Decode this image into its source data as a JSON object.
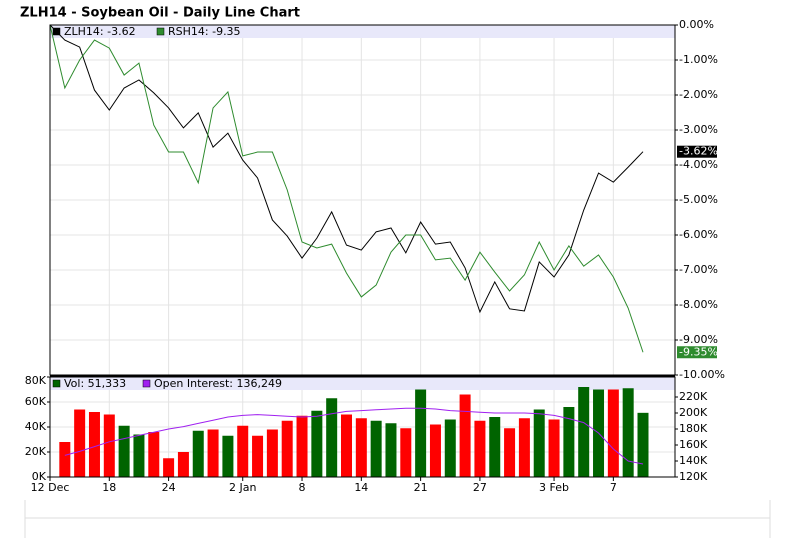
{
  "chart_data": [
    {
      "type": "line",
      "title": "ZLH14 - Soybean Oil - Daily Line Chart",
      "ylim": [
        -10,
        0
      ],
      "yticks": [
        {
          "value": 0,
          "label": "0.00%"
        },
        {
          "value": -1,
          "label": "-1.00%"
        },
        {
          "value": -2,
          "label": "-2.00%"
        },
        {
          "value": -3,
          "label": "-3.00%"
        },
        {
          "value": -4,
          "label": "-4.00%"
        },
        {
          "value": -5,
          "label": "-5.00%"
        },
        {
          "value": -6,
          "label": "-6.00%"
        },
        {
          "value": -7,
          "label": "-7.00%"
        },
        {
          "value": -8,
          "label": "-8.00%"
        },
        {
          "value": -9,
          "label": "-9.00%"
        },
        {
          "value": -10,
          "label": "-10.00%"
        }
      ],
      "grid": true,
      "series": [
        {
          "name": "ZLH14: -3.62",
          "color": "#000000",
          "values": [
            0,
            -0.43,
            -0.63,
            -1.86,
            -2.43,
            -1.8,
            -1.57,
            -1.94,
            -2.37,
            -2.94,
            -2.51,
            -3.49,
            -3.09,
            -3.86,
            -4.37,
            -5.57,
            -6.03,
            -6.66,
            -6.09,
            -5.34,
            -6.29,
            -6.43,
            -5.91,
            -5.8,
            -6.51,
            -5.63,
            -6.26,
            -6.2,
            -6.94,
            -8.2,
            -7.34,
            -8.11,
            -8.17,
            -6.77,
            -7.2,
            -6.57,
            -5.29,
            -4.23,
            -4.49,
            -4.06,
            -3.62
          ],
          "value_labels": [
            null,
            null,
            null,
            null,
            null,
            null,
            null,
            null,
            null,
            null,
            null,
            null,
            null,
            null,
            null,
            null,
            null,
            null,
            null,
            null,
            null,
            null,
            null,
            null,
            null,
            null,
            null,
            null,
            null,
            null,
            null,
            null,
            null,
            null,
            null,
            null,
            null,
            null,
            null,
            null,
            "-3.62%"
          ]
        },
        {
          "name": "RSH14: -9.35",
          "color": "#2e8b2e",
          "values": [
            0,
            -1.8,
            -1.0,
            -0.43,
            -0.66,
            -1.43,
            -1.09,
            -2.86,
            -3.63,
            -3.63,
            -4.51,
            -2.37,
            -1.91,
            -3.74,
            -3.63,
            -3.63,
            -4.71,
            -6.2,
            -6.37,
            -6.26,
            -7.09,
            -7.77,
            -7.43,
            -6.49,
            -6.0,
            -6.0,
            -6.71,
            -6.66,
            -7.29,
            -6.49,
            -7.06,
            -7.6,
            -7.14,
            -6.2,
            -7.0,
            -6.31,
            -6.89,
            -6.57,
            -7.2,
            -8.09,
            -9.35
          ],
          "value_labels": [
            null,
            null,
            null,
            null,
            null,
            null,
            null,
            null,
            null,
            null,
            null,
            null,
            null,
            null,
            null,
            null,
            null,
            null,
            null,
            null,
            null,
            null,
            null,
            null,
            null,
            null,
            null,
            null,
            null,
            null,
            null,
            null,
            null,
            null,
            null,
            null,
            null,
            null,
            null,
            null,
            "-9.35%"
          ]
        }
      ]
    },
    {
      "type": "bar",
      "categories": [
        "12 Dec",
        null,
        null,
        null,
        "18",
        null,
        null,
        null,
        "24",
        null,
        null,
        null,
        null,
        "2 Jan",
        null,
        null,
        null,
        "8",
        null,
        null,
        null,
        "14",
        null,
        null,
        null,
        "21",
        null,
        null,
        null,
        "27",
        null,
        null,
        null,
        null,
        "3 Feb",
        null,
        null,
        null,
        "7",
        null,
        null
      ],
      "ylim": [
        0,
        80
      ],
      "yticks": [
        {
          "value": 0,
          "label": "0K"
        },
        {
          "value": 20,
          "label": "20K"
        },
        {
          "value": 40,
          "label": "40K"
        },
        {
          "value": 60,
          "label": "60K"
        },
        {
          "value": 80,
          "label": "80K"
        }
      ],
      "y2lim": [
        120,
        245
      ],
      "y2ticks": [
        {
          "value": 120,
          "label": "120K"
        },
        {
          "value": 140,
          "label": "140K"
        },
        {
          "value": 160,
          "label": "160K"
        },
        {
          "value": 180,
          "label": "180K"
        },
        {
          "value": 200,
          "label": "200K"
        },
        {
          "value": 220,
          "label": "220K"
        }
      ],
      "grid": true,
      "series": [
        {
          "name": "Vol: 51,333",
          "color": "#006400",
          "colors": [
            null,
            "#ff0000",
            "#ff0000",
            "#ff0000",
            "#ff0000",
            "#006400",
            "#006400",
            "#ff0000",
            "#ff0000",
            "#ff0000",
            "#006400",
            "#ff0000",
            "#006400",
            "#ff0000",
            "#ff0000",
            "#ff0000",
            "#ff0000",
            "#ff0000",
            "#006400",
            "#006400",
            "#ff0000",
            "#ff0000",
            "#006400",
            "#006400",
            "#ff0000",
            "#006400",
            "#ff0000",
            "#006400",
            "#ff0000",
            "#ff0000",
            "#006400",
            "#ff0000",
            "#ff0000",
            "#006400",
            "#ff0000",
            "#006400",
            "#006400",
            "#006400",
            "#ff0000",
            "#006400",
            "#006400"
          ],
          "values": [
            null,
            28,
            54,
            52,
            50,
            41,
            34,
            36,
            15,
            20,
            37,
            38,
            33,
            41,
            33,
            38,
            45,
            49,
            53,
            63,
            50,
            47,
            45,
            43,
            39,
            70,
            42,
            46,
            66,
            45,
            48,
            39,
            47,
            54,
            46,
            56,
            72,
            70,
            70,
            71,
            51.333
          ]
        },
        {
          "name": "Open Interest: 136,249",
          "color": "#a020f0",
          "type": "line",
          "axis": "y2",
          "values": [
            null,
            147,
            152,
            158,
            164,
            168,
            172,
            176,
            180,
            183,
            187,
            191,
            195,
            197,
            198,
            197,
            196,
            195,
            196,
            199,
            202,
            203,
            204,
            205,
            206,
            206,
            205,
            203,
            202,
            201,
            200,
            200,
            200,
            199,
            197,
            193,
            188,
            175,
            155,
            140,
            136.249
          ]
        }
      ]
    }
  ]
}
